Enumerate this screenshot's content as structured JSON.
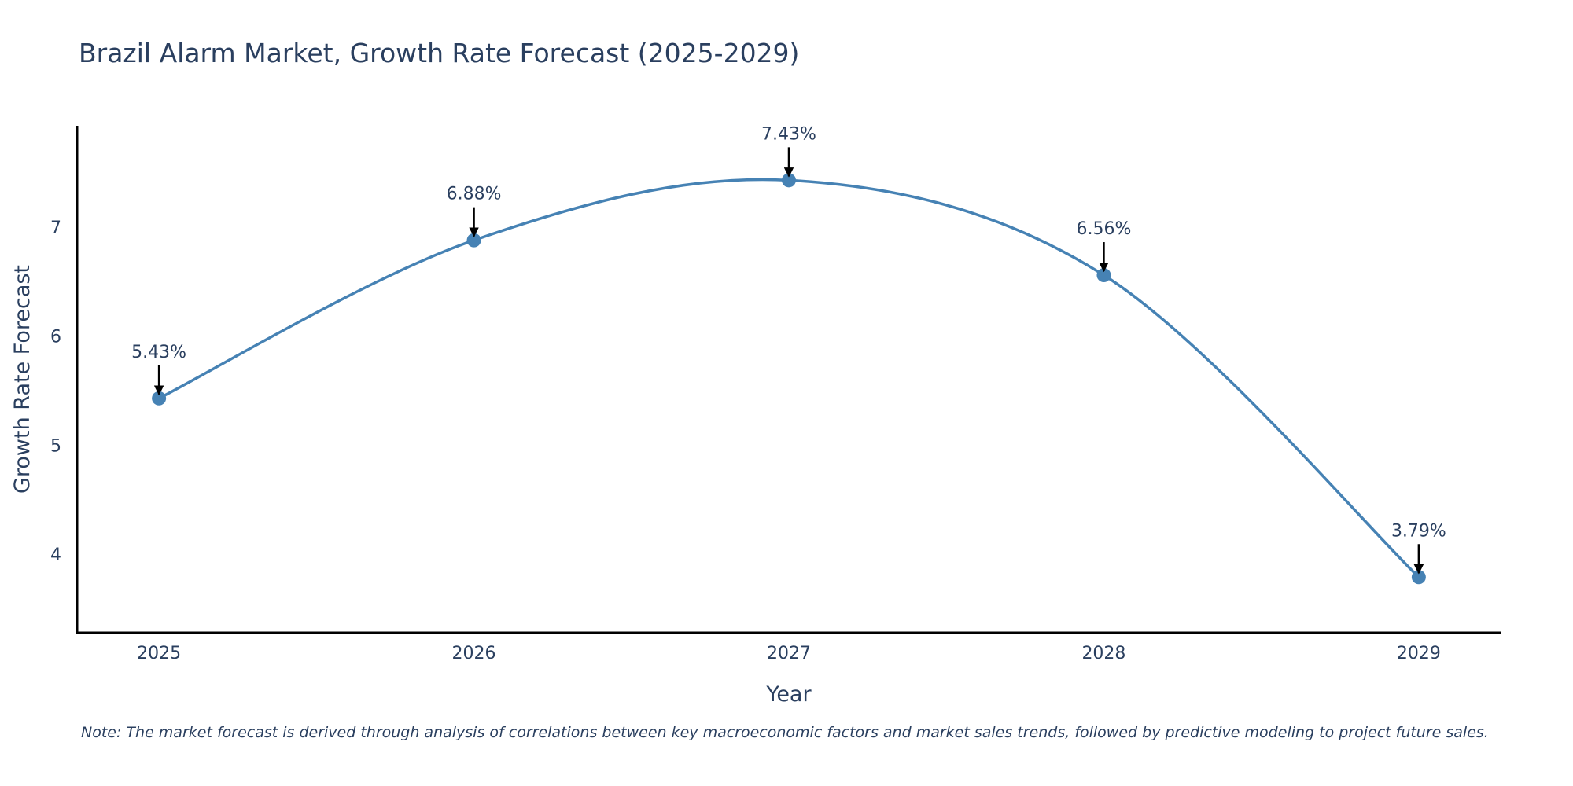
{
  "chart_data": {
    "type": "line",
    "title": "Brazil Alarm Market, Growth Rate Forecast (2025-2029)",
    "xlabel": "Year",
    "ylabel": "Growth Rate Forecast",
    "categories": [
      "2025",
      "2026",
      "2027",
      "2028",
      "2029"
    ],
    "series": [
      {
        "name": "Growth Rate Forecast",
        "values": [
          5.43,
          6.88,
          7.43,
          6.56,
          3.79
        ],
        "labels": [
          "5.43%",
          "6.88%",
          "7.43%",
          "6.56%",
          "3.79%"
        ]
      }
    ],
    "yticks": [
      4,
      5,
      6,
      7
    ],
    "ylim": [
      3.28,
      7.93
    ],
    "xlim": [
      2024.74,
      2029.26
    ],
    "grid": false,
    "line_color": "#4682b4",
    "note": "Note: The market forecast is derived through analysis of correlations between key macroeconomic factors and market sales trends, followed by predictive modeling to project future sales."
  }
}
